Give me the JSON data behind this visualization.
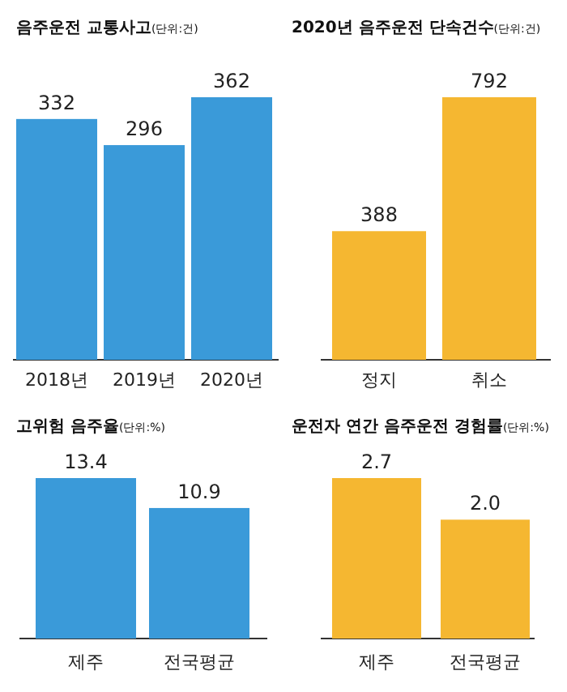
{
  "chart_data": [
    {
      "type": "bar",
      "title": "음주운전 교통사고",
      "subtitle": "(단위:건)",
      "categories": [
        "2018년",
        "2019년",
        "2020년"
      ],
      "values": [
        332,
        296,
        362
      ],
      "color": "#3a9ad9",
      "data_labels": true
    },
    {
      "type": "bar",
      "title": "2020년 음주운전 단속건수",
      "subtitle": "(단위:건)",
      "categories": [
        "정지",
        "취소"
      ],
      "values": [
        388,
        792
      ],
      "color": "#f5b731",
      "data_labels": true
    },
    {
      "type": "bar",
      "title": "고위험 음주율",
      "subtitle": "(단위:%)",
      "categories": [
        "제주",
        "전국평균"
      ],
      "values": [
        13.4,
        10.9
      ],
      "color": "#3a9ad9",
      "value_labels": [
        "13.4",
        "10.9"
      ]
    },
    {
      "type": "bar",
      "title": "운전자 연간 음주운전 경험률",
      "subtitle": "(단위:%)",
      "categories": [
        "제주",
        "전국평균"
      ],
      "values": [
        2.7,
        2.0
      ],
      "color": "#f5b731",
      "value_labels": [
        "2.7",
        "2.0"
      ]
    }
  ]
}
